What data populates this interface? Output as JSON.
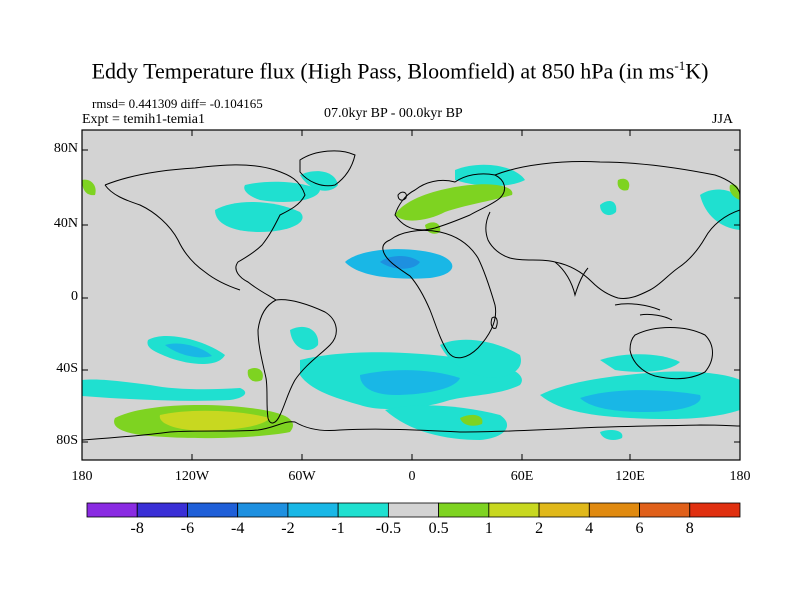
{
  "title": {
    "main": "Eddy Temperature flux (High Pass, Bloomfield) at 850 hPa (in ms",
    "superscript": "-1",
    "tail": "K)"
  },
  "stats": {
    "rmsd_diff": "rmsd= 0.441309 diff= -0.104165",
    "expt": "Expt = temih1-temia1",
    "period": "07.0kyr BP - 00.0kyr BP",
    "season": "JJA"
  },
  "axes": {
    "lat_labels": [
      "80N",
      "40N",
      "0",
      "40S",
      "80S"
    ],
    "lon_labels": [
      "180",
      "120W",
      "60W",
      "0",
      "60E",
      "120E",
      "180"
    ]
  },
  "colorbar": {
    "labels": [
      "-8",
      "-6",
      "-4",
      "-2",
      "-1",
      "-0.5",
      "0.5",
      "1",
      "2",
      "4",
      "6",
      "8"
    ],
    "colors": [
      "#8a2be2",
      "#3a2fd6",
      "#1f5fd8",
      "#1e90e0",
      "#19b7e6",
      "#1fe0d0",
      "#d3d3d3",
      "#7ed321",
      "#c8d820",
      "#e0b81a",
      "#e08a10",
      "#e0601a",
      "#e03010"
    ]
  },
  "colors": {
    "land_background": "#d3d3d3",
    "coastline": "#000000"
  }
}
